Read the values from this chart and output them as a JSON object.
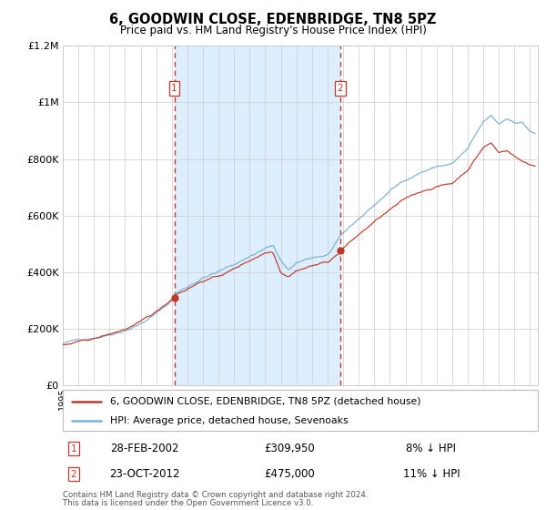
{
  "title": "6, GOODWIN CLOSE, EDENBRIDGE, TN8 5PZ",
  "subtitle": "Price paid vs. HM Land Registry's House Price Index (HPI)",
  "legend_line1": "6, GOODWIN CLOSE, EDENBRIDGE, TN8 5PZ (detached house)",
  "legend_line2": "HPI: Average price, detached house, Sevenoaks",
  "xmin": 1995.0,
  "xmax": 2025.5,
  "ymin": 0,
  "ymax": 1200000,
  "yticks": [
    0,
    200000,
    400000,
    600000,
    800000,
    1000000,
    1200000
  ],
  "ytick_labels": [
    "£0",
    "£200K",
    "£400K",
    "£600K",
    "£800K",
    "£1M",
    "£1.2M"
  ],
  "purchase1_x": 2002.16,
  "purchase1_y": 309950,
  "purchase1_label": "1",
  "purchase1_date": "28-FEB-2002",
  "purchase1_price": "£309,950",
  "purchase1_note": "8% ↓ HPI",
  "purchase2_x": 2012.81,
  "purchase2_y": 475000,
  "purchase2_label": "2",
  "purchase2_date": "23-OCT-2012",
  "purchase2_price": "£475,000",
  "purchase2_note": "11% ↓ HPI",
  "shade_xmin": 2002.16,
  "shade_xmax": 2012.81,
  "hpi_color": "#7bafd4",
  "price_color": "#c0392b",
  "shade_color": "#ddeeff",
  "grid_color": "#cccccc",
  "background_color": "#ffffff",
  "footnote1": "Contains HM Land Registry data © Crown copyright and database right 2024.",
  "footnote2": "This data is licensed under the Open Government Licence v3.0."
}
